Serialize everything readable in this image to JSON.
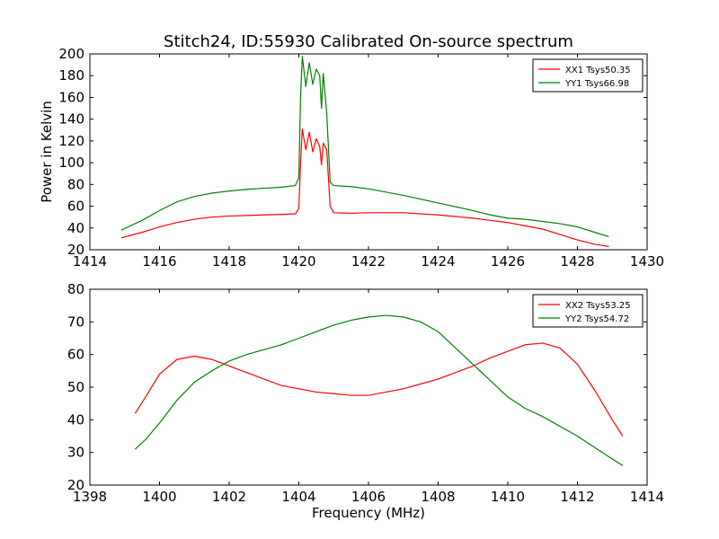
{
  "figure": {
    "title": "Stitch24, ID:55930 Calibrated On-source spectrum",
    "ylabel": "Power in Kelvin",
    "xlabel": "Frequency (MHz)"
  },
  "chart_data": [
    {
      "type": "line",
      "title": "Stitch24, ID:55930 Calibrated On-source spectrum",
      "xlabel": "",
      "ylabel": "Power in Kelvin",
      "xlim": [
        1414,
        1430
      ],
      "ylim": [
        20,
        200
      ],
      "xticks": [
        1414,
        1416,
        1418,
        1420,
        1422,
        1424,
        1426,
        1428,
        1430
      ],
      "yticks": [
        20,
        40,
        60,
        80,
        100,
        120,
        140,
        160,
        180,
        200
      ],
      "legend": "upper right",
      "grid": false,
      "series": [
        {
          "name": "XX1 Tsys50.35",
          "color": "#ff0000",
          "points": [
            [
              1414.9,
              31
            ],
            [
              1415.5,
              36
            ],
            [
              1416.0,
              41
            ],
            [
              1416.5,
              45
            ],
            [
              1417.0,
              48
            ],
            [
              1417.5,
              50
            ],
            [
              1418.0,
              51
            ],
            [
              1418.5,
              51.5
            ],
            [
              1419.0,
              52
            ],
            [
              1419.5,
              52.5
            ],
            [
              1419.9,
              53
            ],
            [
              1420.0,
              58
            ],
            [
              1420.05,
              100
            ],
            [
              1420.1,
              131
            ],
            [
              1420.2,
              112
            ],
            [
              1420.3,
              128
            ],
            [
              1420.4,
              110
            ],
            [
              1420.5,
              122
            ],
            [
              1420.6,
              115
            ],
            [
              1420.65,
              98
            ],
            [
              1420.7,
              118
            ],
            [
              1420.8,
              112
            ],
            [
              1420.9,
              60
            ],
            [
              1421.0,
              54
            ],
            [
              1421.5,
              53.5
            ],
            [
              1422.0,
              54
            ],
            [
              1423.0,
              54
            ],
            [
              1424.0,
              52
            ],
            [
              1425.0,
              49
            ],
            [
              1425.5,
              47
            ],
            [
              1426.0,
              45
            ],
            [
              1426.5,
              42
            ],
            [
              1427.0,
              39
            ],
            [
              1427.5,
              34
            ],
            [
              1428.0,
              29
            ],
            [
              1428.5,
              25
            ],
            [
              1428.9,
              23
            ]
          ]
        },
        {
          "name": "YY1 Tsys66.98",
          "color": "#008000",
          "points": [
            [
              1414.9,
              38
            ],
            [
              1415.5,
              47
            ],
            [
              1416.0,
              56
            ],
            [
              1416.5,
              64
            ],
            [
              1417.0,
              69
            ],
            [
              1417.5,
              72
            ],
            [
              1418.0,
              74
            ],
            [
              1418.5,
              75.5
            ],
            [
              1419.0,
              76.5
            ],
            [
              1419.5,
              77.5
            ],
            [
              1419.9,
              79
            ],
            [
              1420.0,
              86
            ],
            [
              1420.05,
              160
            ],
            [
              1420.1,
              198
            ],
            [
              1420.2,
              170
            ],
            [
              1420.3,
              192
            ],
            [
              1420.4,
              172
            ],
            [
              1420.5,
              186
            ],
            [
              1420.6,
              180
            ],
            [
              1420.65,
              150
            ],
            [
              1420.7,
              182
            ],
            [
              1420.8,
              146
            ],
            [
              1420.9,
              82
            ],
            [
              1421.0,
              79
            ],
            [
              1421.5,
              78
            ],
            [
              1422.0,
              76
            ],
            [
              1423.0,
              70
            ],
            [
              1424.0,
              63
            ],
            [
              1425.0,
              56
            ],
            [
              1425.5,
              52
            ],
            [
              1426.0,
              49
            ],
            [
              1426.5,
              48
            ],
            [
              1427.0,
              46
            ],
            [
              1427.5,
              44
            ],
            [
              1428.0,
              41
            ],
            [
              1428.5,
              36
            ],
            [
              1428.9,
              32
            ]
          ]
        }
      ]
    },
    {
      "type": "line",
      "title": "",
      "xlabel": "Frequency (MHz)",
      "ylabel": "",
      "xlim": [
        1398,
        1414
      ],
      "ylim": [
        20,
        80
      ],
      "xticks": [
        1398,
        1400,
        1402,
        1404,
        1406,
        1408,
        1410,
        1412,
        1414
      ],
      "yticks": [
        20,
        30,
        40,
        50,
        60,
        70,
        80
      ],
      "legend": "upper right",
      "grid": false,
      "series": [
        {
          "name": "XX2 Tsys53.25",
          "color": "#ff0000",
          "points": [
            [
              1399.3,
              42
            ],
            [
              1399.6,
              47
            ],
            [
              1400.0,
              54
            ],
            [
              1400.5,
              58.5
            ],
            [
              1401.0,
              59.5
            ],
            [
              1401.5,
              58.5
            ],
            [
              1402.0,
              56.5
            ],
            [
              1402.5,
              54.5
            ],
            [
              1403.0,
              52.5
            ],
            [
              1403.5,
              50.5
            ],
            [
              1404.0,
              49.5
            ],
            [
              1404.5,
              48.5
            ],
            [
              1405.0,
              48
            ],
            [
              1405.5,
              47.5
            ],
            [
              1406.0,
              47.5
            ],
            [
              1406.5,
              48.5
            ],
            [
              1407.0,
              49.5
            ],
            [
              1407.5,
              51
            ],
            [
              1408.0,
              52.5
            ],
            [
              1408.5,
              54.5
            ],
            [
              1409.0,
              56.5
            ],
            [
              1409.5,
              59
            ],
            [
              1410.0,
              61
            ],
            [
              1410.5,
              63
            ],
            [
              1411.0,
              63.5
            ],
            [
              1411.5,
              62
            ],
            [
              1412.0,
              57
            ],
            [
              1412.5,
              49
            ],
            [
              1413.0,
              40
            ],
            [
              1413.3,
              35
            ]
          ]
        },
        {
          "name": "YY2 Tsys54.72",
          "color": "#008000",
          "points": [
            [
              1399.3,
              31
            ],
            [
              1399.6,
              34
            ],
            [
              1400.0,
              39
            ],
            [
              1400.5,
              46
            ],
            [
              1401.0,
              51.5
            ],
            [
              1401.5,
              55
            ],
            [
              1402.0,
              58
            ],
            [
              1402.5,
              60
            ],
            [
              1403.0,
              61.5
            ],
            [
              1403.5,
              63
            ],
            [
              1404.0,
              65
            ],
            [
              1404.5,
              67
            ],
            [
              1405.0,
              69
            ],
            [
              1405.5,
              70.5
            ],
            [
              1406.0,
              71.5
            ],
            [
              1406.5,
              72
            ],
            [
              1407.0,
              71.5
            ],
            [
              1407.5,
              70
            ],
            [
              1408.0,
              67
            ],
            [
              1408.5,
              62
            ],
            [
              1409.0,
              57
            ],
            [
              1409.5,
              52
            ],
            [
              1410.0,
              47
            ],
            [
              1410.5,
              43.5
            ],
            [
              1411.0,
              41
            ],
            [
              1411.5,
              38
            ],
            [
              1412.0,
              35
            ],
            [
              1412.5,
              31.5
            ],
            [
              1413.0,
              28
            ],
            [
              1413.3,
              26
            ]
          ]
        }
      ]
    }
  ]
}
